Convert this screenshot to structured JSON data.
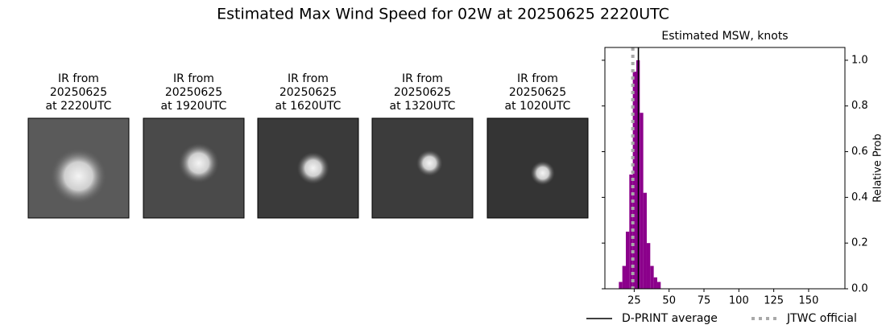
{
  "title": "Estimated Max Wind Speed for 02W at 20250625 2220UTC",
  "panels": [
    {
      "lines": [
        "IR from",
        "20250625",
        "at 2220UTC"
      ]
    },
    {
      "lines": [
        "IR from",
        "20250625",
        "at 1920UTC"
      ]
    },
    {
      "lines": [
        "IR from",
        "20250625",
        "at 1620UTC"
      ]
    },
    {
      "lines": [
        "IR from",
        "20250625",
        "at 1320UTC"
      ]
    },
    {
      "lines": [
        "IR from",
        "20250625",
        "at 1020UTC"
      ]
    }
  ],
  "chart_data": {
    "type": "histogram",
    "title": "Estimated MSW, knots",
    "y_label": "Relative Prob",
    "bins": [
      14,
      16.5,
      19,
      21.5,
      24,
      26.5,
      29,
      31.5,
      34,
      36.5,
      39,
      41.5,
      44
    ],
    "counts": [
      0.03,
      0.1,
      0.25,
      0.5,
      0.95,
      1.0,
      0.77,
      0.42,
      0.2,
      0.1,
      0.05,
      0.03
    ],
    "color": "#8b008b",
    "lines": [
      {
        "name": "D-PRINT average",
        "x": 28,
        "color": "#000000",
        "style": "solid"
      },
      {
        "name": "JTWC official",
        "x": 24,
        "color": "#a9a9a9",
        "style": "dotted"
      }
    ],
    "xlim": [
      4,
      176
    ],
    "xticks": [
      25,
      50,
      75,
      100,
      125,
      150
    ],
    "ylim": [
      0,
      1.056
    ],
    "yticks": [
      {
        "value": 0,
        "label": "0.0"
      },
      {
        "value": 0.2,
        "label": "0.2"
      },
      {
        "value": 0.4,
        "label": "0.4"
      },
      {
        "value": 0.6,
        "label": "0.6"
      },
      {
        "value": 0.8,
        "label": "0.8"
      },
      {
        "value": 1.0,
        "label": "1.0"
      }
    ]
  }
}
